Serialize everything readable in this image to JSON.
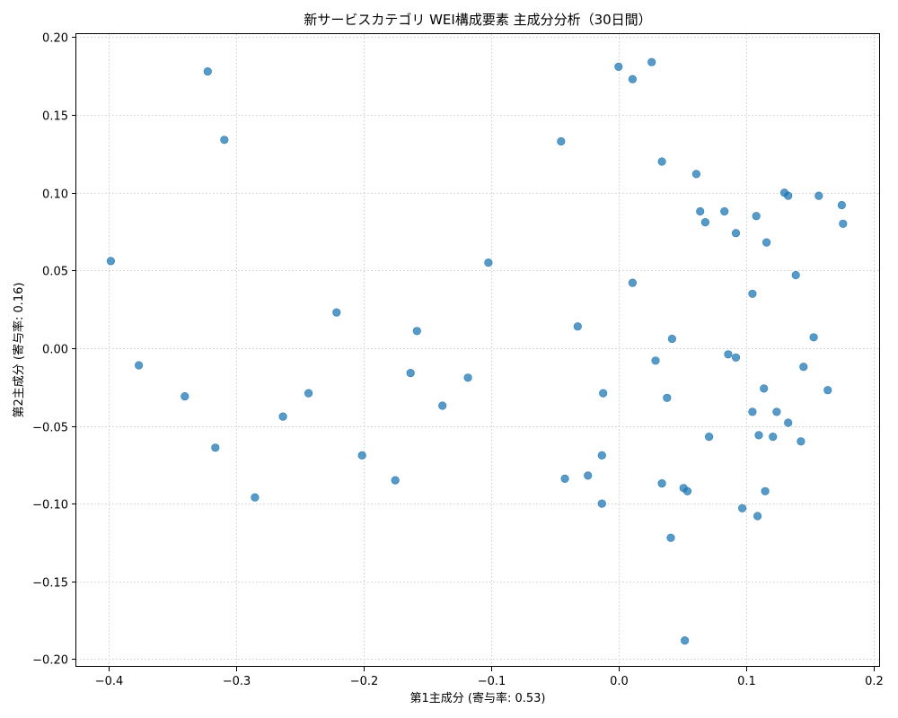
{
  "chart_data": {
    "type": "scatter",
    "title": "新サービスカテゴリ WEI構成要素 主成分分析（30日間）",
    "xlabel": "第1主成分 (寄与率: 0.53)",
    "ylabel": "第2主成分 (寄与率: 0.16)",
    "xlim": [
      -0.425,
      0.205
    ],
    "ylim": [
      -0.205,
      0.202
    ],
    "x_ticks": [
      -0.4,
      -0.3,
      -0.2,
      -0.1,
      0.0,
      0.1,
      0.2
    ],
    "x_tick_labels": [
      "−0.4",
      "−0.3",
      "−0.2",
      "−0.1",
      "0.0",
      "0.1",
      "0.2"
    ],
    "y_ticks": [
      0.2,
      0.15,
      0.1,
      0.05,
      0.0,
      -0.05,
      -0.1,
      -0.15,
      -0.2
    ],
    "y_tick_labels": [
      "0.20",
      "0.15",
      "0.10",
      "0.05",
      "0.00",
      "−0.05",
      "−0.10",
      "−0.15",
      "−0.20"
    ],
    "grid": true,
    "color": "#1f77b4",
    "points": [
      {
        "x": -0.398,
        "y": 0.056
      },
      {
        "x": -0.376,
        "y": -0.011
      },
      {
        "x": -0.34,
        "y": -0.031
      },
      {
        "x": -0.322,
        "y": 0.178
      },
      {
        "x": -0.316,
        "y": -0.064
      },
      {
        "x": -0.309,
        "y": 0.134
      },
      {
        "x": -0.285,
        "y": -0.096
      },
      {
        "x": -0.263,
        "y": -0.044
      },
      {
        "x": -0.243,
        "y": -0.029
      },
      {
        "x": -0.221,
        "y": 0.023
      },
      {
        "x": -0.201,
        "y": -0.069
      },
      {
        "x": -0.175,
        "y": -0.085
      },
      {
        "x": -0.163,
        "y": -0.016
      },
      {
        "x": -0.158,
        "y": 0.011
      },
      {
        "x": -0.138,
        "y": -0.037
      },
      {
        "x": -0.118,
        "y": -0.019
      },
      {
        "x": -0.102,
        "y": 0.055
      },
      {
        "x": -0.045,
        "y": 0.133
      },
      {
        "x": -0.042,
        "y": -0.084
      },
      {
        "x": -0.032,
        "y": 0.014
      },
      {
        "x": -0.024,
        "y": -0.082
      },
      {
        "x": -0.013,
        "y": -0.1
      },
      {
        "x": -0.013,
        "y": -0.069
      },
      {
        "x": -0.012,
        "y": -0.029
      },
      {
        "x": 0.0,
        "y": 0.181
      },
      {
        "x": 0.011,
        "y": 0.173
      },
      {
        "x": 0.011,
        "y": 0.042
      },
      {
        "x": 0.026,
        "y": 0.184
      },
      {
        "x": 0.029,
        "y": -0.008
      },
      {
        "x": 0.034,
        "y": 0.12
      },
      {
        "x": 0.034,
        "y": -0.087
      },
      {
        "x": 0.038,
        "y": -0.032
      },
      {
        "x": 0.041,
        "y": -0.122
      },
      {
        "x": 0.042,
        "y": 0.006
      },
      {
        "x": 0.051,
        "y": -0.09
      },
      {
        "x": 0.052,
        "y": -0.188
      },
      {
        "x": 0.054,
        "y": -0.092
      },
      {
        "x": 0.061,
        "y": 0.112
      },
      {
        "x": 0.064,
        "y": 0.088
      },
      {
        "x": 0.068,
        "y": 0.081
      },
      {
        "x": 0.071,
        "y": -0.057
      },
      {
        "x": 0.083,
        "y": 0.088
      },
      {
        "x": 0.086,
        "y": -0.004
      },
      {
        "x": 0.092,
        "y": 0.074
      },
      {
        "x": 0.092,
        "y": -0.006
      },
      {
        "x": 0.097,
        "y": -0.103
      },
      {
        "x": 0.105,
        "y": 0.035
      },
      {
        "x": 0.105,
        "y": -0.041
      },
      {
        "x": 0.108,
        "y": 0.085
      },
      {
        "x": 0.109,
        "y": -0.108
      },
      {
        "x": 0.11,
        "y": -0.056
      },
      {
        "x": 0.114,
        "y": -0.026
      },
      {
        "x": 0.115,
        "y": -0.092
      },
      {
        "x": 0.116,
        "y": 0.068
      },
      {
        "x": 0.121,
        "y": -0.057
      },
      {
        "x": 0.124,
        "y": -0.041
      },
      {
        "x": 0.13,
        "y": 0.1
      },
      {
        "x": 0.133,
        "y": 0.098
      },
      {
        "x": 0.133,
        "y": -0.048
      },
      {
        "x": 0.139,
        "y": 0.047
      },
      {
        "x": 0.143,
        "y": -0.06
      },
      {
        "x": 0.145,
        "y": -0.012
      },
      {
        "x": 0.153,
        "y": 0.007
      },
      {
        "x": 0.157,
        "y": 0.098
      },
      {
        "x": 0.164,
        "y": -0.027
      },
      {
        "x": 0.175,
        "y": 0.092
      },
      {
        "x": 0.176,
        "y": 0.08
      }
    ]
  }
}
